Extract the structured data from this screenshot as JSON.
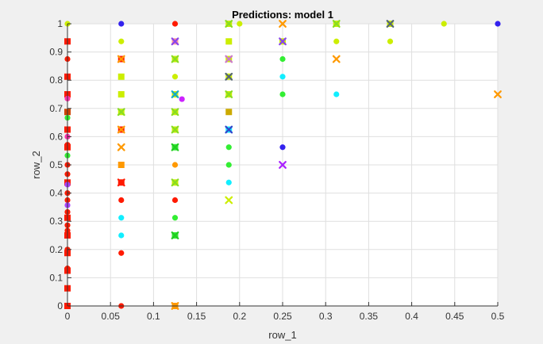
{
  "chart_data": {
    "type": "scatter",
    "title": "Predictions: model 1",
    "xlabel": "row_1",
    "ylabel": "row_2",
    "xlim": [
      0,
      0.5
    ],
    "ylim": [
      0,
      1
    ],
    "x_ticks": [
      0,
      0.05,
      0.1,
      0.15,
      0.2,
      0.25,
      0.3,
      0.35,
      0.4,
      0.45,
      0.5
    ],
    "y_ticks": [
      0,
      0.1,
      0.2,
      0.3,
      0.4,
      0.5,
      0.6,
      0.7,
      0.8,
      0.9,
      1
    ],
    "x_tick_labels": [
      "0",
      "0.05",
      "0.1",
      "0.15",
      "0.2",
      "0.25",
      "0.3",
      "0.35",
      "0.4",
      "0.45",
      "0.5"
    ],
    "y_tick_labels": [
      "0",
      "0.1",
      "0.2",
      "0.3",
      "0.4",
      "0.5",
      "0.6",
      "0.7",
      "0.8",
      "0.9",
      "1"
    ],
    "grid": true,
    "legend": "none",
    "background": "#ffffff",
    "points": [
      {
        "x": 0,
        "y": 1,
        "marker": "circle",
        "color": "#ccee00"
      },
      {
        "x": 0,
        "y": 0.9375,
        "marker": "square",
        "color": "#ff1a00"
      },
      {
        "x": 0,
        "y": 0.875,
        "marker": "circle",
        "color": "#ff1a00"
      },
      {
        "x": 0,
        "y": 0.8125,
        "marker": "square",
        "color": "#ff1a00"
      },
      {
        "x": 0,
        "y": 0.75,
        "marker": "square",
        "color": "#ff1a00"
      },
      {
        "x": 0,
        "y": 0.735,
        "marker": "circle",
        "color": "#ff33aa"
      },
      {
        "x": 0,
        "y": 0.6875,
        "marker": "square",
        "color": "#cc4400"
      },
      {
        "x": 0,
        "y": 0.667,
        "marker": "circle",
        "color": "#33ee33"
      },
      {
        "x": 0,
        "y": 0.625,
        "marker": "square",
        "color": "#ff1a00"
      },
      {
        "x": 0,
        "y": 0.6,
        "marker": "circle",
        "color": "#ff33aa"
      },
      {
        "x": 0,
        "y": 0.571,
        "marker": "circle",
        "color": "#ff1a00"
      },
      {
        "x": 0,
        "y": 0.5625,
        "marker": "square",
        "color": "#ff1a00"
      },
      {
        "x": 0,
        "y": 0.533,
        "marker": "circle",
        "color": "#33ee33"
      },
      {
        "x": 0,
        "y": 0.5,
        "marker": "circle",
        "color": "#ff1a00"
      },
      {
        "x": 0,
        "y": 0.467,
        "marker": "circle",
        "color": "#ff1a00"
      },
      {
        "x": 0,
        "y": 0.4375,
        "marker": "square",
        "color": "#ff1a00"
      },
      {
        "x": 0,
        "y": 0.43,
        "marker": "circle",
        "color": "#aa44ff"
      },
      {
        "x": 0,
        "y": 0.4,
        "marker": "circle",
        "color": "#ff1a00"
      },
      {
        "x": 0,
        "y": 0.375,
        "marker": "circle",
        "color": "#ff1a00"
      },
      {
        "x": 0,
        "y": 0.357,
        "marker": "circle",
        "color": "#aa44ff"
      },
      {
        "x": 0,
        "y": 0.333,
        "marker": "circle",
        "color": "#ff1a00"
      },
      {
        "x": 0,
        "y": 0.3125,
        "marker": "square",
        "color": "#ff1a00"
      },
      {
        "x": 0,
        "y": 0.286,
        "marker": "circle",
        "color": "#ff1a00"
      },
      {
        "x": 0,
        "y": 0.267,
        "marker": "circle",
        "color": "#ff1a00"
      },
      {
        "x": 0,
        "y": 0.25,
        "marker": "square",
        "color": "#ff1a00"
      },
      {
        "x": 0,
        "y": 0.2,
        "marker": "circle",
        "color": "#ff1a00"
      },
      {
        "x": 0,
        "y": 0.1875,
        "marker": "square",
        "color": "#ff1a00"
      },
      {
        "x": 0,
        "y": 0.133,
        "marker": "circle",
        "color": "#ff1a00"
      },
      {
        "x": 0,
        "y": 0.125,
        "marker": "square",
        "color": "#ff1a00"
      },
      {
        "x": 0,
        "y": 0.0625,
        "marker": "square",
        "color": "#ff1a00"
      },
      {
        "x": 0,
        "y": 0,
        "marker": "square",
        "color": "#ff1a00"
      },
      {
        "x": 0.0625,
        "y": 1,
        "marker": "circle",
        "color": "#3322ee"
      },
      {
        "x": 0.0625,
        "y": 0.9375,
        "marker": "circle",
        "color": "#ccee00"
      },
      {
        "x": 0.0625,
        "y": 0.875,
        "marker": "square",
        "color": "#ff1a00"
      },
      {
        "x": 0.0625,
        "y": 0.875,
        "marker": "x",
        "color": "#ff9900"
      },
      {
        "x": 0.0625,
        "y": 0.8125,
        "marker": "square",
        "color": "#ccee00"
      },
      {
        "x": 0.0625,
        "y": 0.75,
        "marker": "square",
        "color": "#ccee00"
      },
      {
        "x": 0.0625,
        "y": 0.6875,
        "marker": "square",
        "color": "#ccee00"
      },
      {
        "x": 0.0625,
        "y": 0.6875,
        "marker": "x",
        "color": "#88dd22"
      },
      {
        "x": 0.0625,
        "y": 0.625,
        "marker": "square",
        "color": "#ff1a00"
      },
      {
        "x": 0.0625,
        "y": 0.625,
        "marker": "x",
        "color": "#ff9900"
      },
      {
        "x": 0.0625,
        "y": 0.5625,
        "marker": "x",
        "color": "#ff9900"
      },
      {
        "x": 0.0625,
        "y": 0.5,
        "marker": "square",
        "color": "#ff9900"
      },
      {
        "x": 0.0625,
        "y": 0.4375,
        "marker": "square",
        "color": "#ff1a00"
      },
      {
        "x": 0.0625,
        "y": 0.4375,
        "marker": "x",
        "color": "#ff1a00"
      },
      {
        "x": 0.0625,
        "y": 0.375,
        "marker": "circle",
        "color": "#ff1a00"
      },
      {
        "x": 0.0625,
        "y": 0.3125,
        "marker": "circle",
        "color": "#11eeff"
      },
      {
        "x": 0.0625,
        "y": 0.25,
        "marker": "circle",
        "color": "#11eeff"
      },
      {
        "x": 0.0625,
        "y": 0.1875,
        "marker": "circle",
        "color": "#ff1a00"
      },
      {
        "x": 0.0625,
        "y": 0,
        "marker": "circle",
        "color": "#ff1a00"
      },
      {
        "x": 0.125,
        "y": 1,
        "marker": "circle",
        "color": "#ff1a00"
      },
      {
        "x": 0.125,
        "y": 0.9375,
        "marker": "square",
        "color": "#ff9999"
      },
      {
        "x": 0.125,
        "y": 0.9375,
        "marker": "x",
        "color": "#8844ee"
      },
      {
        "x": 0.125,
        "y": 0.875,
        "marker": "square",
        "color": "#ccee00"
      },
      {
        "x": 0.125,
        "y": 0.875,
        "marker": "x",
        "color": "#88dd22"
      },
      {
        "x": 0.125,
        "y": 0.8125,
        "marker": "circle",
        "color": "#ccee00"
      },
      {
        "x": 0.125,
        "y": 0.75,
        "marker": "square",
        "color": "#ccee00"
      },
      {
        "x": 0.125,
        "y": 0.75,
        "marker": "x",
        "color": "#11aacc"
      },
      {
        "x": 0.133,
        "y": 0.733,
        "marker": "circle",
        "color": "#cc22ff"
      },
      {
        "x": 0.125,
        "y": 0.6875,
        "marker": "square",
        "color": "#ccee00"
      },
      {
        "x": 0.125,
        "y": 0.6875,
        "marker": "x",
        "color": "#88dd22"
      },
      {
        "x": 0.125,
        "y": 0.625,
        "marker": "square",
        "color": "#ccee00"
      },
      {
        "x": 0.125,
        "y": 0.625,
        "marker": "x",
        "color": "#88dd22"
      },
      {
        "x": 0.125,
        "y": 0.5625,
        "marker": "square",
        "color": "#33ee33"
      },
      {
        "x": 0.125,
        "y": 0.5625,
        "marker": "x",
        "color": "#22cc22"
      },
      {
        "x": 0.125,
        "y": 0.5,
        "marker": "circle",
        "color": "#ff9900"
      },
      {
        "x": 0.125,
        "y": 0.4375,
        "marker": "square",
        "color": "#ccee00"
      },
      {
        "x": 0.125,
        "y": 0.4375,
        "marker": "x",
        "color": "#88dd22"
      },
      {
        "x": 0.125,
        "y": 0.375,
        "marker": "circle",
        "color": "#ff1a00"
      },
      {
        "x": 0.125,
        "y": 0.3125,
        "marker": "circle",
        "color": "#33ee33"
      },
      {
        "x": 0.125,
        "y": 0.25,
        "marker": "square",
        "color": "#33ee33"
      },
      {
        "x": 0.125,
        "y": 0.25,
        "marker": "x",
        "color": "#22cc22"
      },
      {
        "x": 0.125,
        "y": 0,
        "marker": "square",
        "color": "#ff9900"
      },
      {
        "x": 0.125,
        "y": 0,
        "marker": "x",
        "color": "#ff9900"
      },
      {
        "x": 0.1875,
        "y": 1,
        "marker": "square",
        "color": "#ccee00"
      },
      {
        "x": 0.1875,
        "y": 1,
        "marker": "x",
        "color": "#88dd22"
      },
      {
        "x": 0.2,
        "y": 1,
        "marker": "circle",
        "color": "#ccee00"
      },
      {
        "x": 0.1875,
        "y": 0.9375,
        "marker": "square",
        "color": "#ccee00"
      },
      {
        "x": 0.1875,
        "y": 0.875,
        "marker": "square",
        "color": "#ccee00"
      },
      {
        "x": 0.1875,
        "y": 0.875,
        "marker": "x",
        "color": "#cc77cc"
      },
      {
        "x": 0.1875,
        "y": 0.8125,
        "marker": "square",
        "color": "#ccee00"
      },
      {
        "x": 0.1875,
        "y": 0.8125,
        "marker": "x",
        "color": "#556677"
      },
      {
        "x": 0.1875,
        "y": 0.75,
        "marker": "square",
        "color": "#ccee00"
      },
      {
        "x": 0.1875,
        "y": 0.75,
        "marker": "x",
        "color": "#88dd22"
      },
      {
        "x": 0.1875,
        "y": 0.6875,
        "marker": "square",
        "color": "#ccaa00"
      },
      {
        "x": 0.1875,
        "y": 0.625,
        "marker": "square",
        "color": "#11eeff"
      },
      {
        "x": 0.1875,
        "y": 0.625,
        "marker": "x",
        "color": "#3344cc"
      },
      {
        "x": 0.1875,
        "y": 0.5625,
        "marker": "circle",
        "color": "#33ee33"
      },
      {
        "x": 0.1875,
        "y": 0.5,
        "marker": "circle",
        "color": "#33ee33"
      },
      {
        "x": 0.1875,
        "y": 0.4375,
        "marker": "circle",
        "color": "#11eeff"
      },
      {
        "x": 0.1875,
        "y": 0.375,
        "marker": "x",
        "color": "#ccee00"
      },
      {
        "x": 0.25,
        "y": 1,
        "marker": "x",
        "color": "#ff9900"
      },
      {
        "x": 0.25,
        "y": 0.9375,
        "marker": "square",
        "color": "#ccee00"
      },
      {
        "x": 0.25,
        "y": 0.9375,
        "marker": "x",
        "color": "#8844ee"
      },
      {
        "x": 0.25,
        "y": 0.875,
        "marker": "circle",
        "color": "#33ee33"
      },
      {
        "x": 0.25,
        "y": 0.8125,
        "marker": "circle",
        "color": "#11eeff"
      },
      {
        "x": 0.25,
        "y": 0.75,
        "marker": "circle",
        "color": "#33ee33"
      },
      {
        "x": 0.25,
        "y": 0.5625,
        "marker": "circle",
        "color": "#3322ee"
      },
      {
        "x": 0.25,
        "y": 0.5,
        "marker": "x",
        "color": "#aa22ff"
      },
      {
        "x": 0.3125,
        "y": 1,
        "marker": "square",
        "color": "#ccee00"
      },
      {
        "x": 0.3125,
        "y": 1,
        "marker": "x",
        "color": "#88dd22"
      },
      {
        "x": 0.3125,
        "y": 0.9375,
        "marker": "circle",
        "color": "#ccee00"
      },
      {
        "x": 0.3125,
        "y": 0.875,
        "marker": "x",
        "color": "#ff9900"
      },
      {
        "x": 0.3125,
        "y": 0.75,
        "marker": "circle",
        "color": "#11eeff"
      },
      {
        "x": 0.375,
        "y": 1,
        "marker": "square",
        "color": "#ccee00"
      },
      {
        "x": 0.375,
        "y": 1,
        "marker": "x",
        "color": "#556677"
      },
      {
        "x": 0.375,
        "y": 0.9375,
        "marker": "circle",
        "color": "#ccee00"
      },
      {
        "x": 0.4375,
        "y": 1,
        "marker": "circle",
        "color": "#ccee00"
      },
      {
        "x": 0.5,
        "y": 1,
        "marker": "circle",
        "color": "#3322ee"
      },
      {
        "x": 0.5,
        "y": 0.75,
        "marker": "x",
        "color": "#ff9900"
      }
    ]
  }
}
